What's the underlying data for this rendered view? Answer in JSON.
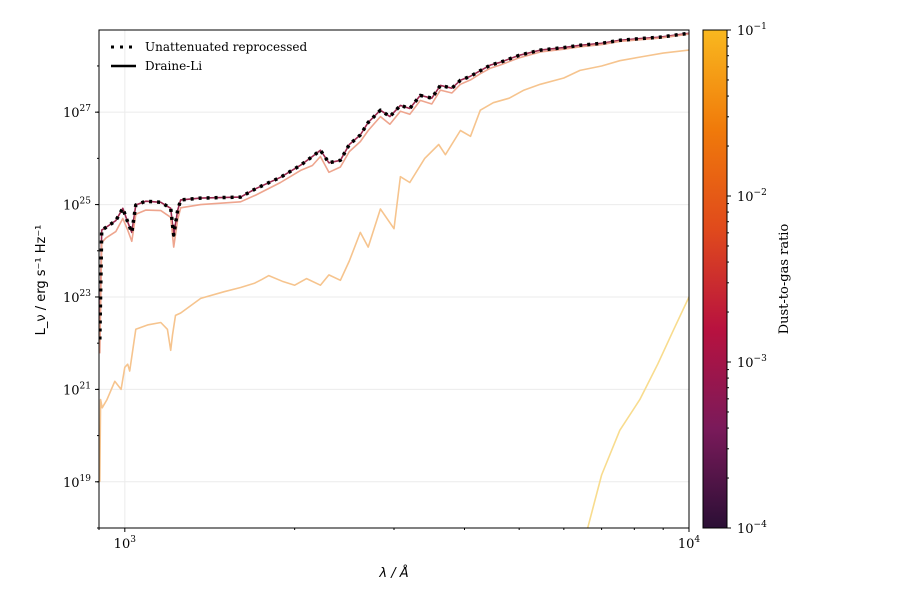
{
  "chart_data": {
    "type": "line",
    "title": "",
    "xlabel": "λ / Å",
    "ylabel": "L_ν / erg s⁻¹ Hz⁻¹",
    "xscale": "log",
    "yscale": "log",
    "xlim": [
      900,
      10000
    ],
    "ylim": [
      1e+18,
      6e+28
    ],
    "grid": true,
    "x_ticks": [
      {
        "value": 1000,
        "base": "10",
        "exp": "3"
      },
      {
        "value": 10000,
        "base": "10",
        "exp": "4"
      }
    ],
    "y_ticks": [
      {
        "value": 1e+19,
        "base": "10",
        "exp": "19"
      },
      {
        "value": 1e+21,
        "base": "10",
        "exp": "21"
      },
      {
        "value": 1e+23,
        "base": "10",
        "exp": "23"
      },
      {
        "value": 1e+25,
        "base": "10",
        "exp": "25"
      },
      {
        "value": 1e+27,
        "base": "10",
        "exp": "27"
      }
    ],
    "legend": {
      "placement": "top-left",
      "entries": [
        {
          "label": "Unattenuated reprocessed",
          "style": "dotted",
          "color": "#000000"
        },
        {
          "label": "Draine-Li",
          "style": "solid",
          "color": "#000000"
        }
      ]
    },
    "colorbar": {
      "label": "Dust-to-gas ratio",
      "scale": "log",
      "range": [
        0.0001,
        0.1
      ],
      "ticks": [
        {
          "value": 0.1,
          "base": "10",
          "exp": "−1"
        },
        {
          "value": 0.01,
          "base": "10",
          "exp": "−2"
        },
        {
          "value": 0.001,
          "base": "10",
          "exp": "−3"
        },
        {
          "value": 0.0001,
          "base": "10",
          "exp": "−4"
        }
      ],
      "colors": [
        "#2b0f35",
        "#7a1a5a",
        "#b8123f",
        "#e04a1c",
        "#f07a0a",
        "#f9b81f"
      ]
    },
    "series": [
      {
        "id": "draine-li-dark",
        "style": "solid",
        "color": "#9a2a4e",
        "x": [
          903,
          910,
          926,
          964,
          992,
          1012,
          1029,
          1046,
          1089,
          1158,
          1206,
          1221,
          1241,
          1256,
          1363,
          1604,
          1706,
          1888,
          2049,
          2150,
          2222,
          2300,
          2411,
          2500,
          2615,
          2700,
          2838,
          2950,
          3080,
          3200,
          3340,
          3500,
          3625,
          3800,
          3934,
          4100,
          4267,
          4450,
          4630,
          5000,
          5450,
          6000,
          6410,
          7000,
          7540,
          8200,
          8880,
          9400,
          10000
        ],
        "y": [
          1.2e+22,
          2.8e+24,
          3.2e+24,
          4.5e+24,
          8.3e+24,
          4.2e+24,
          2.5e+24,
          9.8e+24,
          1.18e+25,
          1.12e+25,
          8.3e+24,
          2.2e+24,
          7.6e+24,
          1.26e+25,
          1.38e+25,
          1.45e+25,
          2.2e+25,
          3.9e+25,
          7.1e+25,
          1.1e+26,
          1.5e+26,
          8e+25,
          9.1e+25,
          2e+26,
          3.2e+26,
          6e+26,
          1.1e+27,
          8e+26,
          1.4e+27,
          1.2e+27,
          2.3e+27,
          2e+27,
          3.8e+27,
          3.3e+27,
          4.9e+27,
          6e+27,
          7.9e+27,
          1.05e+28,
          1.2e+28,
          1.7e+28,
          2.2e+28,
          2.5e+28,
          2.8e+28,
          3.1e+28,
          3.6e+28,
          3.9e+28,
          4.2e+28,
          4.6e+28,
          5.1e+28
        ]
      },
      {
        "id": "draine-li-salmon",
        "style": "solid",
        "color": "#eea58e",
        "x": [
          903,
          910,
          926,
          964,
          992,
          1012,
          1029,
          1046,
          1089,
          1158,
          1206,
          1221,
          1241,
          1256,
          1363,
          1604,
          1706,
          1888,
          2049,
          2150,
          2222,
          2300,
          2411,
          2500,
          2615,
          2700,
          2838,
          2950,
          3080,
          3200,
          3340,
          3500,
          3625,
          3800,
          3934,
          4100,
          4267,
          4450,
          4630,
          5000,
          5450,
          6000,
          6410,
          7000,
          7540,
          8200,
          8880,
          9400,
          10000
        ],
        "y": [
          6e+21,
          1.5e+24,
          1.9e+24,
          2.6e+24,
          5e+24,
          2.8e+24,
          1.6e+24,
          6.2e+24,
          7.6e+24,
          7.4e+24,
          5.3e+24,
          1.2e+24,
          4.8e+24,
          8.5e+24,
          1e+25,
          1.15e+25,
          1.6e+25,
          3e+25,
          5.5e+25,
          7e+25,
          1.1e+26,
          5e+25,
          6.5e+25,
          1.4e+26,
          2.3e+26,
          4e+26,
          8e+26,
          5.5e+26,
          1.05e+27,
          9e+26,
          1.8e+27,
          1.5e+27,
          3e+27,
          2.6e+27,
          4e+27,
          5e+27,
          6.8e+27,
          9e+27,
          1.05e+28,
          1.5e+28,
          2e+28,
          2.3e+28,
          2.6e+28,
          2.9e+28,
          3.4e+28,
          3.7e+28,
          4e+28,
          4.4e+28,
          4.9e+28
        ]
      },
      {
        "id": "draine-li-orange",
        "style": "solid",
        "color": "#f6c48e",
        "x": [
          903,
          906,
          912,
          930,
          960,
          985,
          1000,
          1012,
          1020,
          1046,
          1100,
          1158,
          1190,
          1206,
          1215,
          1230,
          1256,
          1363,
          1500,
          1604,
          1700,
          1750,
          1800,
          1900,
          2000,
          2100,
          2222,
          2300,
          2411,
          2500,
          2615,
          2700,
          2838,
          3000,
          3080,
          3200,
          3400,
          3600,
          3700,
          3934,
          4100,
          4267,
          4500,
          4800,
          5100,
          5450,
          6000,
          6410,
          7000,
          7540,
          8300,
          9000,
          10000
        ],
        "y": [
          1e+19,
          6e+20,
          4e+20,
          6e+20,
          1.5e+21,
          1e+21,
          3e+21,
          3.5e+21,
          2.5e+21,
          2e+22,
          2.5e+22,
          2.8e+22,
          2e+22,
          7e+21,
          1.5e+22,
          4e+22,
          4.5e+22,
          9.3e+22,
          1.3e+23,
          1.6e+23,
          2e+23,
          2.4e+23,
          2.9e+23,
          2.2e+23,
          1.8e+23,
          2.5e+23,
          1.8e+23,
          3e+23,
          2.3e+23,
          6e+23,
          2.5e+24,
          1.2e+24,
          8e+24,
          3e+24,
          4e+25,
          3e+25,
          1e+26,
          2e+26,
          1.2e+26,
          4e+26,
          3e+26,
          1.1e+27,
          1.6e+27,
          2e+27,
          3e+27,
          4e+27,
          5.5e+27,
          8e+27,
          1e+28,
          1.3e+28,
          1.6e+28,
          1.9e+28,
          2.2e+28
        ]
      },
      {
        "id": "draine-li-yellow",
        "style": "solid",
        "color": "#f8dc8e",
        "x": [
          6614,
          7000,
          7540,
          8180,
          8800,
          9400,
          10000
        ],
        "y": [
          1e+18,
          1.4e+19,
          1.3e+20,
          6e+20,
          3.5e+21,
          2e+22,
          1e+23
        ]
      },
      {
        "id": "unattenuated-reprocessed",
        "style": "dotted",
        "color": "#000000",
        "x": [
          903,
          910,
          926,
          964,
          992,
          1012,
          1029,
          1046,
          1089,
          1158,
          1206,
          1221,
          1241,
          1256,
          1363,
          1604,
          1706,
          1888,
          2049,
          2150,
          2222,
          2300,
          2411,
          2500,
          2615,
          2700,
          2838,
          2950,
          3080,
          3200,
          3340,
          3500,
          3625,
          3800,
          3934,
          4100,
          4267,
          4450,
          4630,
          5000,
          5450,
          6000,
          6410,
          7000,
          7540,
          8200,
          8880,
          9400,
          10000
        ],
        "y": [
          1.2e+22,
          2.8e+24,
          3.2e+24,
          4.5e+24,
          8.3e+24,
          4.2e+24,
          2.5e+24,
          9.8e+24,
          1.18e+25,
          1.12e+25,
          8.3e+24,
          2.2e+24,
          7.6e+24,
          1.26e+25,
          1.38e+25,
          1.45e+25,
          2.2e+25,
          3.9e+25,
          7.1e+25,
          1.1e+26,
          1.5e+26,
          8e+25,
          9.1e+25,
          2e+26,
          3.2e+26,
          6e+26,
          1.1e+27,
          8e+26,
          1.4e+27,
          1.2e+27,
          2.3e+27,
          2e+27,
          3.8e+27,
          3.3e+27,
          4.9e+27,
          6e+27,
          7.9e+27,
          1.05e+28,
          1.2e+28,
          1.7e+28,
          2.2e+28,
          2.5e+28,
          2.8e+28,
          3.1e+28,
          3.6e+28,
          3.9e+28,
          4.2e+28,
          4.6e+28,
          5.1e+28
        ]
      }
    ]
  }
}
